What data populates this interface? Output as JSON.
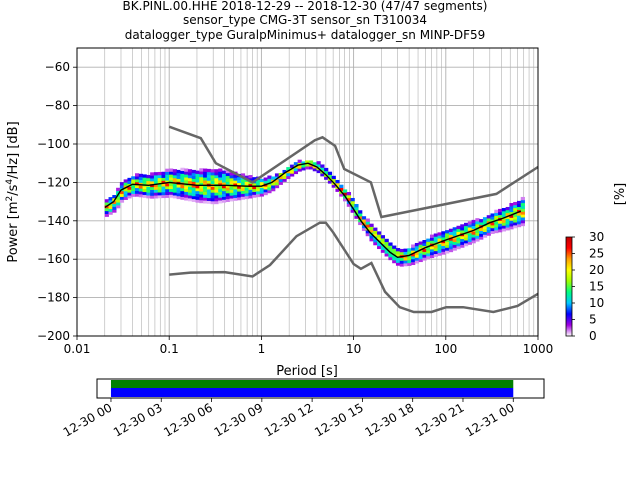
{
  "title": {
    "line1": "BK.PINL.00.HHE   2018-12-29 -- 2018-12-30  (47/47 segments)",
    "line2": "sensor_type CMG-3T sensor_sn T310034",
    "line3": "datalogger_type GuralpMinimus+ datalogger_sn MINP-DF59"
  },
  "colorbar": {
    "unit": "[%]",
    "ticks": [
      "0",
      "5",
      "10",
      "15",
      "20",
      "25",
      "30"
    ],
    "range": [
      0,
      30
    ],
    "colormap": [
      "#ffffff",
      "#a000e0",
      "#0000ff",
      "#00c8ff",
      "#00ff80",
      "#a0ff00",
      "#ffff00",
      "#ffa000",
      "#ff0000",
      "#c00000"
    ]
  },
  "colors": {
    "noise_model": "#666666",
    "median": "#000000",
    "coverage_green": "#008000",
    "coverage_blue": "#0000ff"
  },
  "chart_data": [
    {
      "type": "heatmap",
      "title": "",
      "xlabel": "Period [s]",
      "ylabel": "Power [m2/s4/Hz] [dB]",
      "ylabel_parts": {
        "prefix": "Power [m",
        "sup1": "2",
        "mid": "/s",
        "sup2": "4",
        "suffix": "/Hz] [dB]"
      },
      "xscale": "log",
      "xlim": [
        0.01,
        1000
      ],
      "ylim": [
        -200,
        -50
      ],
      "grid": true,
      "xticks": [
        {
          "v": 0.01,
          "label": "0.01"
        },
        {
          "v": 0.1,
          "label": "0.1"
        },
        {
          "v": 1,
          "label": "1"
        },
        {
          "v": 10,
          "label": "10"
        },
        {
          "v": 100,
          "label": "100"
        },
        {
          "v": 1000,
          "label": "1000"
        }
      ],
      "yticks": [
        {
          "v": -60,
          "label": "−60"
        },
        {
          "v": -80,
          "label": "−80"
        },
        {
          "v": -100,
          "label": "−100"
        },
        {
          "v": -120,
          "label": "−120"
        },
        {
          "v": -140,
          "label": "−140"
        },
        {
          "v": -160,
          "label": "−160"
        },
        {
          "v": -180,
          "label": "−180"
        },
        {
          "v": -200,
          "label": "−200"
        }
      ],
      "series": [
        {
          "role": "noise-model-high",
          "points": [
            [
              0.1,
              -91
            ],
            [
              0.22,
              -97
            ],
            [
              0.32,
              -110
            ],
            [
              0.8,
              -120
            ],
            [
              3.8,
              -98
            ],
            [
              4.6,
              -96.5
            ],
            [
              6.3,
              -101
            ],
            [
              7.9,
              -113
            ],
            [
              15.4,
              -120
            ],
            [
              20,
              -138
            ],
            [
              354,
              -126
            ],
            [
              1000,
              -112
            ]
          ]
        },
        {
          "role": "noise-model-low",
          "points": [
            [
              0.1,
              -168
            ],
            [
              0.17,
              -167
            ],
            [
              0.4,
              -166.7
            ],
            [
              0.8,
              -169
            ],
            [
              1.24,
              -163
            ],
            [
              2.4,
              -148
            ],
            [
              4.3,
              -141
            ],
            [
              5,
              -141
            ],
            [
              6,
              -146
            ],
            [
              10,
              -162.5
            ],
            [
              12,
              -165
            ],
            [
              15.6,
              -162
            ],
            [
              21.9,
              -177
            ],
            [
              31.6,
              -185
            ],
            [
              45,
              -187.5
            ],
            [
              70,
              -187.5
            ],
            [
              101,
              -185
            ],
            [
              154,
              -185
            ],
            [
              328,
              -187.5
            ],
            [
              600,
              -184.4
            ],
            [
              1000,
              -178
            ]
          ]
        },
        {
          "role": "median",
          "points": [
            [
              0.02,
              -133
            ],
            [
              0.025,
              -130
            ],
            [
              0.03,
              -124
            ],
            [
              0.04,
              -121
            ],
            [
              0.06,
              -121.5
            ],
            [
              0.1,
              -120
            ],
            [
              0.2,
              -121.5
            ],
            [
              0.4,
              -121.5
            ],
            [
              0.7,
              -122
            ],
            [
              1,
              -122
            ],
            [
              1.3,
              -120
            ],
            [
              1.8,
              -115
            ],
            [
              2.5,
              -111
            ],
            [
              3.2,
              -110
            ],
            [
              4,
              -112
            ],
            [
              5,
              -116
            ],
            [
              6.3,
              -121
            ],
            [
              8,
              -127
            ],
            [
              10,
              -134
            ],
            [
              12,
              -140
            ],
            [
              15,
              -146
            ],
            [
              20,
              -152
            ],
            [
              25,
              -156.5
            ],
            [
              30,
              -159
            ],
            [
              40,
              -158
            ],
            [
              60,
              -154
            ],
            [
              100,
              -150
            ],
            [
              200,
              -145
            ],
            [
              300,
              -141
            ],
            [
              400,
              -139
            ],
            [
              650,
              -135
            ]
          ]
        },
        {
          "role": "psd-density",
          "spread": [
            [
              0.02,
              4
            ],
            [
              0.1,
              7
            ],
            [
              0.3,
              9
            ],
            [
              0.8,
              5
            ],
            [
              1.5,
              3
            ],
            [
              3,
              2
            ],
            [
              8,
              3
            ],
            [
              15,
              4
            ],
            [
              30,
              4
            ],
            [
              100,
              6
            ],
            [
              300,
              5
            ],
            [
              700,
              7
            ]
          ],
          "levels": [
            0,
            3,
            6,
            10,
            14,
            18,
            22,
            26,
            30
          ]
        }
      ]
    },
    {
      "type": "bar",
      "title": "",
      "xlabel": "",
      "ylabel": "",
      "xlim": [
        "2018-12-29 23:10",
        "2018-12-31 01:50"
      ],
      "segments": [
        {
          "name": "data",
          "start": "2018-12-30 00:00",
          "end": "2018-12-31 00:00",
          "color": "#008000"
        },
        {
          "name": "psd",
          "start": "2018-12-30 00:00",
          "end": "2018-12-31 00:00",
          "color": "#0000ff"
        }
      ],
      "xticks": [
        {
          "hours": 0,
          "label": "12-30 00"
        },
        {
          "hours": 3,
          "label": "12-30 03"
        },
        {
          "hours": 6,
          "label": "12-30 06"
        },
        {
          "hours": 9,
          "label": "12-30 09"
        },
        {
          "hours": 12,
          "label": "12-30 12"
        },
        {
          "hours": 15,
          "label": "12-30 15"
        },
        {
          "hours": 18,
          "label": "12-30 18"
        },
        {
          "hours": 21,
          "label": "12-30 21"
        },
        {
          "hours": 24,
          "label": "12-31 00"
        }
      ]
    }
  ]
}
